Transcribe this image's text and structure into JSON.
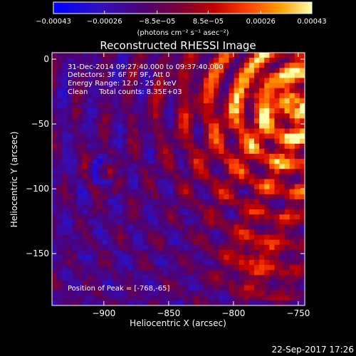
{
  "chart_data": {
    "type": "heatmap",
    "title": "Reconstructed RHESSI Image",
    "xlabel": "Heliocentric X (arcsec)",
    "ylabel": "Heliocentric Y (arcsec)",
    "xlim": [
      -940,
      -745
    ],
    "ylim": [
      -190,
      5
    ],
    "x_ticks": [
      -900,
      -850,
      -800,
      -750
    ],
    "x_tick_labels": [
      "−900",
      "−850",
      "−800",
      "−750"
    ],
    "y_ticks": [
      0,
      -50,
      -100,
      -150
    ],
    "y_tick_labels": [
      "0",
      "−50",
      "−100",
      "−150"
    ],
    "colorbar": {
      "min": -0.00043,
      "max": 0.00043,
      "tick_values": [
        -0.00043,
        -0.00026,
        -8.5e-05,
        8.5e-05,
        0.00026,
        0.00043
      ],
      "tick_labels": [
        "−0.00043",
        "−0.00026",
        "−8.5e−05",
        "8.5e−05",
        "0.00026",
        "0.00043"
      ],
      "unit_label": "(photons cm⁻² s⁻¹ asec⁻²)",
      "colors": [
        "#0000ff",
        "#4000a0",
        "#600060",
        "#a00010",
        "#ff3000",
        "#ff9000",
        "#ffff90"
      ]
    },
    "annotations": [
      "31-Dec-2014 09:27:40.000 to 09:37:40.000",
      "Detectors: 3F 6F 7F 9F, Att 0",
      "Energy Range: 12.0 - 25.0 keV",
      "Clean     Total counts: 8.35E+03"
    ],
    "peak_label": "Position of Peak = [-768,-65]",
    "peak": [
      -768,
      -65
    ],
    "grid": false
  },
  "footer": {
    "timestamp": "22-Sep-2017 17:26"
  }
}
